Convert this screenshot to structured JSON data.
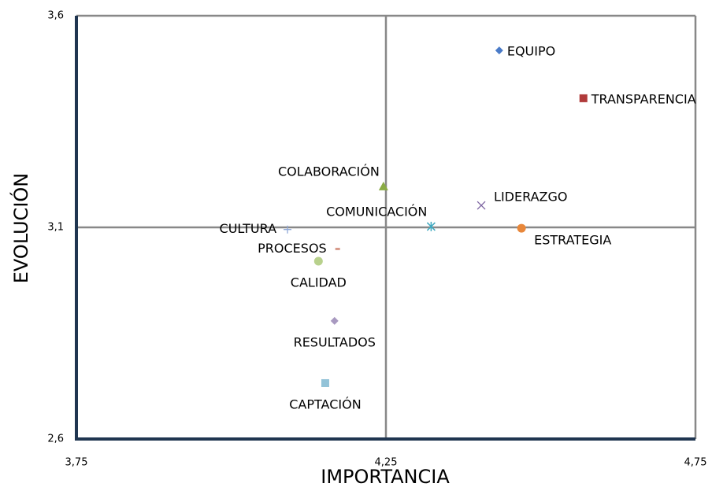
{
  "chart_data": {
    "type": "scatter",
    "x_label": "IMPORTANCIA",
    "y_label": "EVOLUCIÓN",
    "xlim": [
      3.75,
      4.75
    ],
    "ylim": [
      2.6,
      3.6
    ],
    "xticks": [
      {
        "value": 3.75,
        "label": "3,75"
      },
      {
        "value": 4.25,
        "label": "4,25"
      },
      {
        "value": 4.75,
        "label": "4,75"
      }
    ],
    "yticks": [
      {
        "value": 2.6,
        "label": "2,6"
      },
      {
        "value": 3.1,
        "label": "3,1"
      },
      {
        "value": 3.6,
        "label": "3,6"
      }
    ],
    "grid": true,
    "series": [
      {
        "name": "EQUIPO",
        "color": "#4a7bc8",
        "marker": "diamond",
        "label_position": "right",
        "x": [
          4.433
        ],
        "values": [
          3.518
        ]
      },
      {
        "name": "TRANSPARENCIA",
        "color": "#b03a3a",
        "marker": "square",
        "label_position": "right",
        "x": [
          4.569
        ],
        "values": [
          3.405
        ]
      },
      {
        "name": "COLABORACIÓN",
        "color": "#8aab45",
        "marker": "triangle",
        "label_position": "above-left",
        "x": [
          4.246
        ],
        "values": [
          3.197
        ]
      },
      {
        "name": "LIDERAZGO",
        "color": "#7b63a0",
        "marker": "x",
        "label_position": "above-right",
        "x": [
          4.404
        ],
        "values": [
          3.152
        ]
      },
      {
        "name": "COMUNICACIÓN",
        "color": "#3fa9c0",
        "marker": "star",
        "label_position": "above-left",
        "x": [
          4.323
        ],
        "values": [
          3.102
        ]
      },
      {
        "name": "ESTRATEGIA",
        "color": "#e8873a",
        "marker": "circle",
        "label_position": "below-right",
        "x": [
          4.469
        ],
        "values": [
          3.098
        ]
      },
      {
        "name": "CULTURA",
        "color": "#8fa8d8",
        "marker": "plus",
        "label_position": "left",
        "x": [
          4.091
        ],
        "values": [
          3.095
        ]
      },
      {
        "name": "PROCESOS",
        "color": "#d79a8a",
        "marker": "dash",
        "label_position": "left",
        "x": [
          4.172
        ],
        "values": [
          3.049
        ]
      },
      {
        "name": "CALIDAD",
        "color": "#b8d18c",
        "marker": "circle",
        "label_position": "below",
        "x": [
          4.141
        ],
        "values": [
          3.02
        ]
      },
      {
        "name": "RESULTADOS",
        "color": "#a899c0",
        "marker": "diamond",
        "label_position": "below",
        "x": [
          4.167
        ],
        "values": [
          2.879
        ]
      },
      {
        "name": "CAPTACIÓN",
        "color": "#93c3d8",
        "marker": "square",
        "label_position": "below",
        "x": [
          4.152
        ],
        "values": [
          2.732
        ]
      }
    ]
  }
}
